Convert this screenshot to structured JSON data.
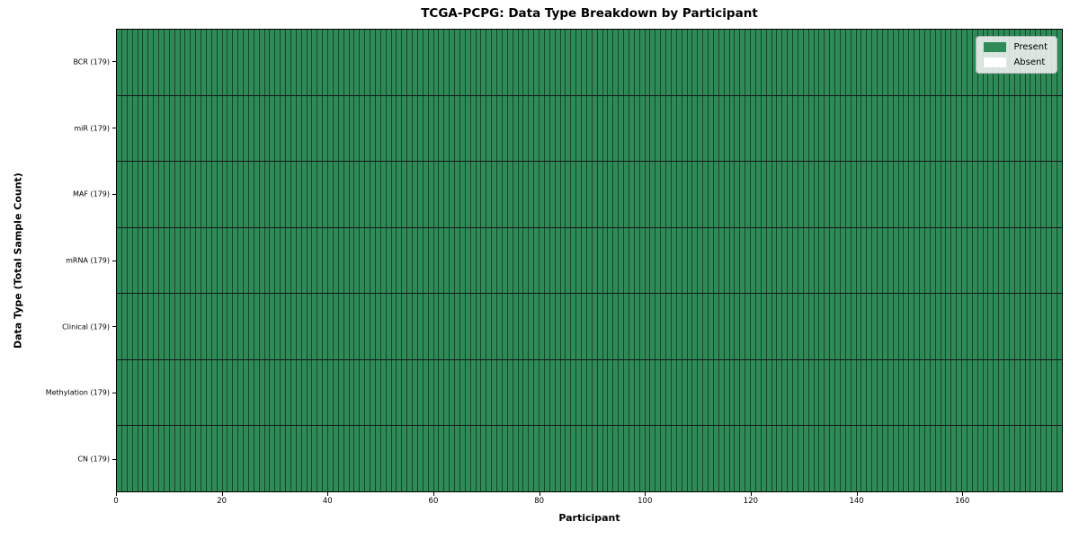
{
  "chart_data": {
    "type": "heatmap",
    "title": "TCGA-PCPG: Data Type Breakdown by Participant",
    "xlabel": "Participant",
    "ylabel": "Data Type (Total Sample Count)",
    "x_range": [
      0,
      179
    ],
    "x_ticks": [
      0,
      20,
      40,
      60,
      80,
      100,
      120,
      140,
      160
    ],
    "n_participants": 179,
    "rows": [
      {
        "label": "BCR (179)",
        "data_type": "BCR",
        "total_samples": 179,
        "present_count": 179,
        "absent_count": 0
      },
      {
        "label": "miR (179)",
        "data_type": "miR",
        "total_samples": 179,
        "present_count": 179,
        "absent_count": 0
      },
      {
        "label": "MAF (179)",
        "data_type": "MAF",
        "total_samples": 179,
        "present_count": 179,
        "absent_count": 0
      },
      {
        "label": "mRNA (179)",
        "data_type": "mRNA",
        "total_samples": 179,
        "present_count": 179,
        "absent_count": 0
      },
      {
        "label": "Clinical (179)",
        "data_type": "Clinical",
        "total_samples": 179,
        "present_count": 179,
        "absent_count": 0
      },
      {
        "label": "Methylation (179)",
        "data_type": "Methylation",
        "total_samples": 179,
        "present_count": 179,
        "absent_count": 0
      },
      {
        "label": "CN (179)",
        "data_type": "CN",
        "total_samples": 179,
        "present_count": 179,
        "absent_count": 0
      }
    ],
    "legend": {
      "position": "top-right",
      "items": [
        {
          "label": "Present",
          "color": "#2e8b57"
        },
        {
          "label": "Absent",
          "color": "#ffffff"
        }
      ]
    },
    "colors": {
      "present": "#2e8b57",
      "absent": "#ffffff",
      "cell_border": "rgba(0,0,0,0.5)",
      "row_separator": "#151515",
      "plot_border": "#000000",
      "legend_background": "#f2f2f2"
    },
    "grid": "per-cell-borders",
    "legend_on": true
  }
}
